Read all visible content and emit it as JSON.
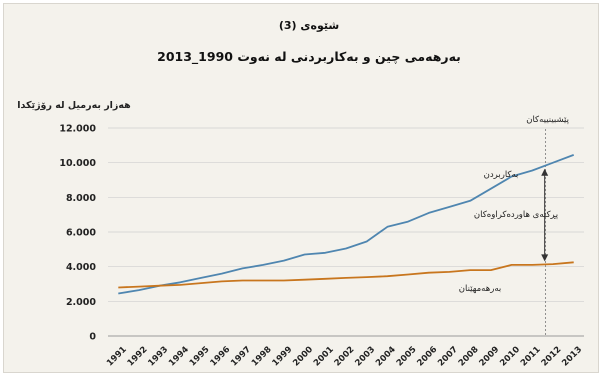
{
  "figure": {
    "label": "شێوەی (3)"
  },
  "chart_data": {
    "type": "line",
    "title": "بەرهەمی چین و بەکاربردنی لە نەوت 1990_2013",
    "ylabel": "هەزار بەرمیل لە رۆژێکدا",
    "xlabel": "",
    "ylim": [
      0,
      12000
    ],
    "yticks": [
      "0",
      "2.000",
      "4.000",
      "6.000",
      "8.000",
      "10.000",
      "12.000"
    ],
    "ytick_values": [
      0,
      2000,
      4000,
      6000,
      8000,
      10000,
      12000
    ],
    "x": [
      "1991",
      "1992",
      "1993",
      "1994",
      "1995",
      "1996",
      "1997",
      "1998",
      "1999",
      "2000",
      "2001",
      "2002",
      "2003",
      "2004",
      "2005",
      "2006",
      "2007",
      "2008",
      "2009",
      "2010",
      "2011",
      "2012",
      "2013"
    ],
    "grid": {
      "horizontal": true,
      "vertical": false
    },
    "forecast_from": "2012",
    "series": [
      {
        "name": "بەکاربردن",
        "color": "#4f86b0",
        "values": [
          2450,
          2650,
          2900,
          3100,
          3350,
          3600,
          3900,
          4100,
          4350,
          4700,
          4800,
          5050,
          5450,
          6300,
          6600,
          7100,
          7450,
          7800,
          8500,
          9200,
          9550,
          10000,
          10450
        ]
      },
      {
        "name": "بەرهەمهێنان",
        "color": "#c8761e",
        "values": [
          2800,
          2850,
          2900,
          2950,
          3050,
          3150,
          3200,
          3200,
          3200,
          3250,
          3300,
          3350,
          3400,
          3450,
          3550,
          3650,
          3700,
          3800,
          3800,
          4100,
          4100,
          4150,
          4250
        ]
      }
    ],
    "annotations": {
      "forecast": "پێشبینییەکان",
      "gap": "پڕکتەی هاوردەکراوەکان"
    }
  }
}
